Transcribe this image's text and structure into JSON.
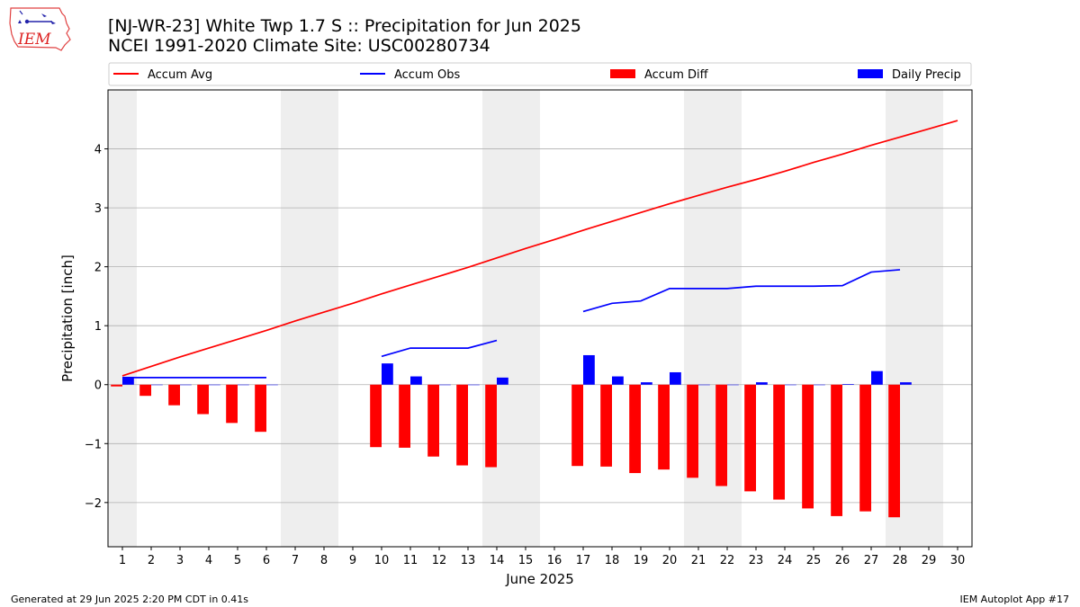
{
  "title_line1": "[NJ-WR-23] White Twp 1.7 S :: Precipitation for Jun 2025",
  "title_line2": "NCEI 1991-2020 Climate Site: USC00280734",
  "footer_left": "Generated at 29 Jun 2025 2:20 PM CDT in 0.41s",
  "footer_right": "IEM Autoplot App #17",
  "logo_text": "IEM",
  "colors": {
    "avg": "#ff0000",
    "obs": "#0000ff",
    "diff": "#ff0000",
    "daily": "#0000ff",
    "weekend": "#eeeeee",
    "grid": "#b0b0b0"
  },
  "chart_data": {
    "type": "bar+line",
    "xlabel": "June 2025",
    "ylabel": "Precipitation [inch]",
    "xlim": [
      0.5,
      30.5
    ],
    "ylim": [
      -2.75,
      5.0
    ],
    "yticks": [
      -2,
      -1,
      0,
      1,
      2,
      3,
      4
    ],
    "ytick_labels": [
      "−2",
      "−1",
      "0",
      "1",
      "2",
      "3",
      "4"
    ],
    "days": [
      1,
      2,
      3,
      4,
      5,
      6,
      7,
      8,
      9,
      10,
      11,
      12,
      13,
      14,
      15,
      16,
      17,
      18,
      19,
      20,
      21,
      22,
      23,
      24,
      25,
      26,
      27,
      28,
      29,
      30
    ],
    "weekend_ranges": [
      [
        0.5,
        1.5
      ],
      [
        6.5,
        8.5
      ],
      [
        13.5,
        15.5
      ],
      [
        20.5,
        22.5
      ],
      [
        27.5,
        29.5
      ]
    ],
    "legend": [
      "Accum Avg",
      "Accum Obs",
      "Accum Diff",
      "Daily Precip"
    ],
    "grid": true,
    "series": [
      {
        "name": "Accum Avg",
        "kind": "line",
        "values": [
          0.15,
          0.31,
          0.47,
          0.62,
          0.77,
          0.92,
          1.08,
          1.23,
          1.38,
          1.54,
          1.69,
          1.84,
          1.99,
          2.15,
          2.31,
          2.46,
          2.62,
          2.77,
          2.92,
          3.07,
          3.21,
          3.35,
          3.48,
          3.62,
          3.77,
          3.91,
          4.06,
          4.2,
          4.34,
          4.48
        ]
      },
      {
        "name": "Accum Obs",
        "kind": "line",
        "values": [
          0.12,
          0.12,
          0.12,
          0.12,
          0.12,
          0.12,
          null,
          null,
          null,
          0.48,
          0.62,
          0.62,
          0.62,
          0.75,
          null,
          null,
          1.24,
          1.38,
          1.42,
          1.63,
          1.63,
          1.63,
          1.67,
          1.67,
          1.67,
          1.68,
          1.91,
          1.95,
          null,
          null
        ]
      },
      {
        "name": "Accum Diff",
        "kind": "bar",
        "values": [
          -0.03,
          -0.19,
          -0.35,
          -0.5,
          -0.65,
          -0.8,
          null,
          null,
          null,
          -1.06,
          -1.07,
          -1.22,
          -1.37,
          -1.4,
          null,
          null,
          -1.38,
          -1.39,
          -1.5,
          -1.44,
          -1.58,
          -1.72,
          -1.81,
          -1.95,
          -2.1,
          -2.23,
          -2.15,
          -2.25,
          null,
          null
        ]
      },
      {
        "name": "Daily Precip",
        "kind": "bar",
        "values": [
          0.12,
          0,
          0,
          0,
          0,
          0,
          null,
          null,
          null,
          0.36,
          0.14,
          0,
          0,
          0.12,
          null,
          null,
          0.5,
          0.14,
          0.04,
          0.21,
          0,
          0,
          0.04,
          0,
          0,
          0.01,
          0.23,
          0.04,
          null,
          null
        ]
      }
    ]
  }
}
